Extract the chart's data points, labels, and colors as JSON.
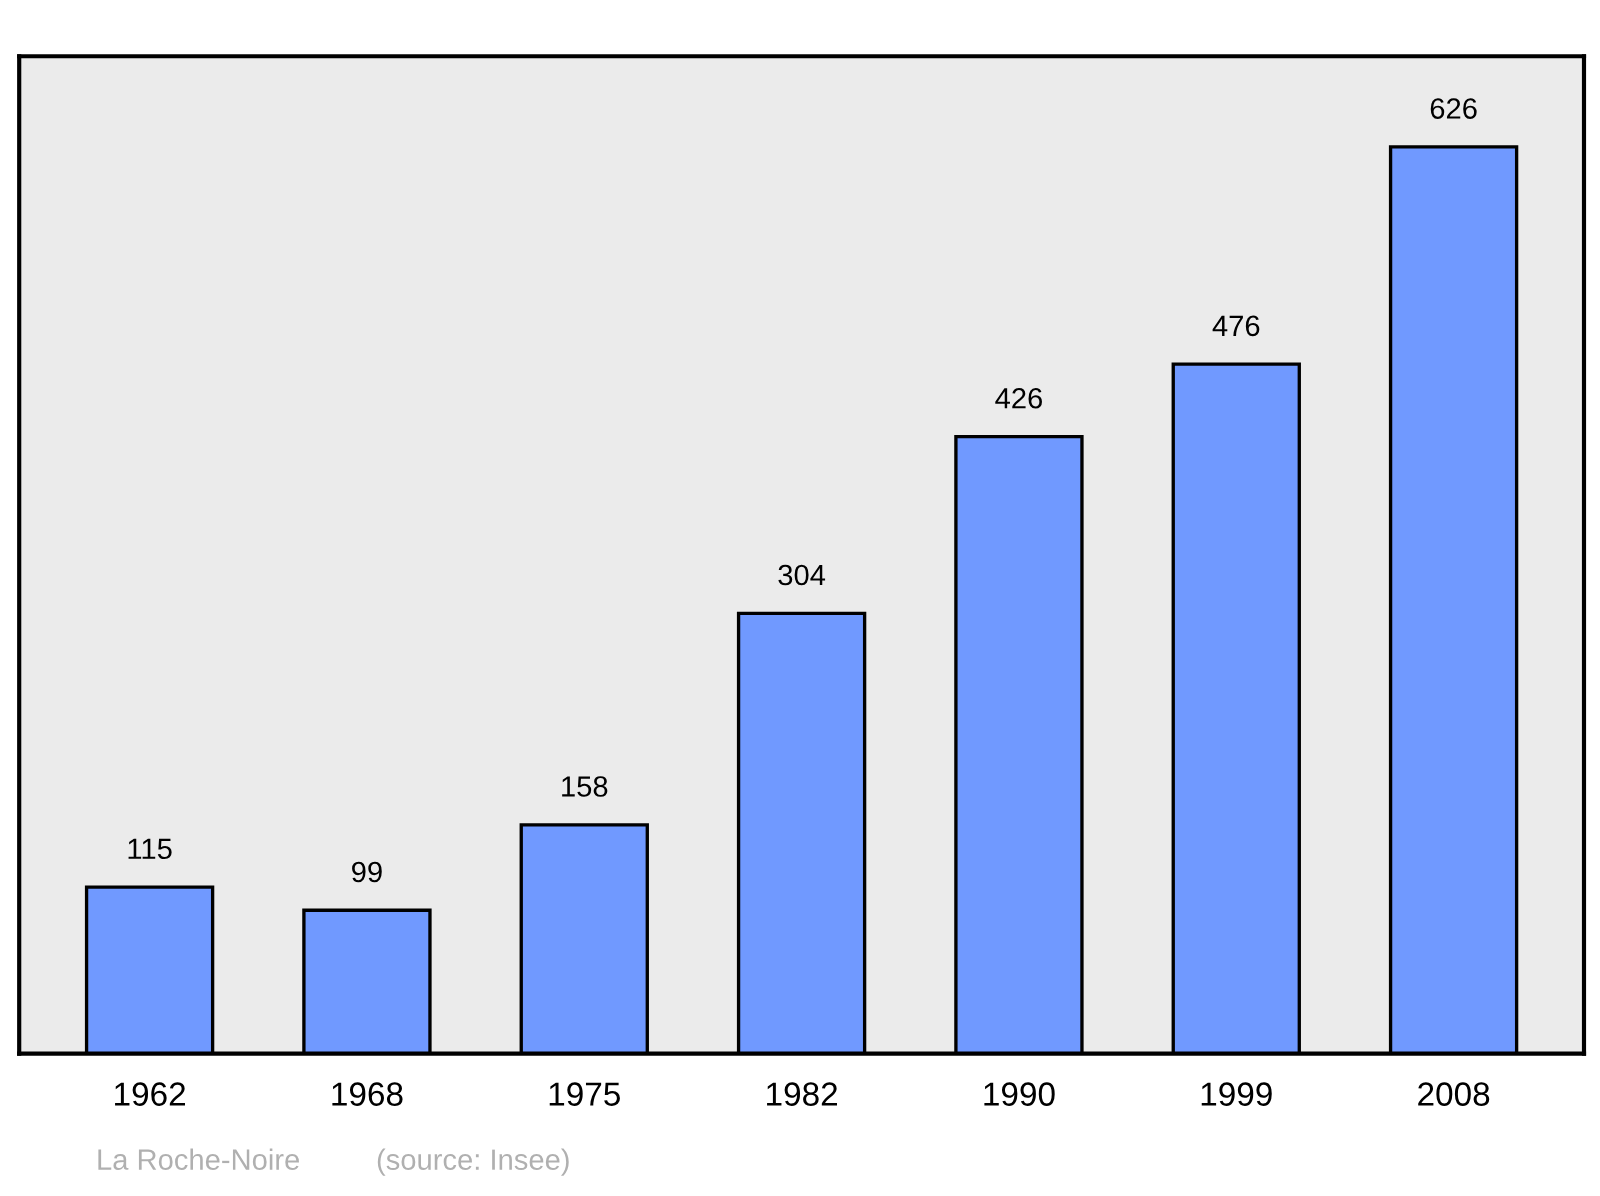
{
  "chart_data": {
    "type": "bar",
    "categories": [
      "1962",
      "1968",
      "1975",
      "1982",
      "1990",
      "1999",
      "2008"
    ],
    "values": [
      115,
      99,
      158,
      304,
      426,
      476,
      626
    ],
    "color": "#7099ff",
    "data_labels": true,
    "grid": false,
    "tick_labels": "x",
    "annotations": [
      "La Roche-Noire",
      "(source: Insee)"
    ]
  }
}
